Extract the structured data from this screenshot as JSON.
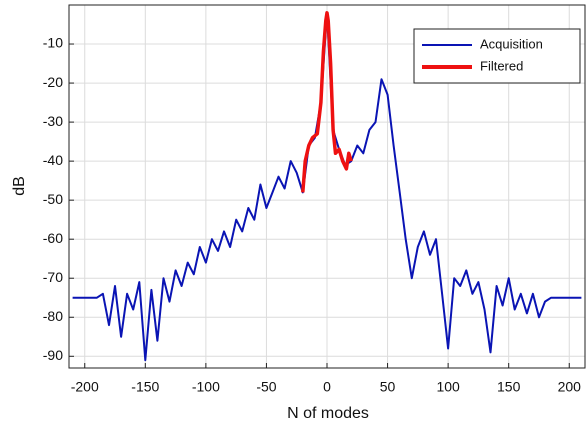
{
  "chart_data": {
    "type": "line",
    "xlabel": "N of modes",
    "ylabel": "dB",
    "xlim": [
      -213,
      213
    ],
    "ylim": [
      -93,
      0
    ],
    "xticks": [
      -200,
      -150,
      -100,
      -50,
      0,
      50,
      100,
      150,
      200
    ],
    "yticks": [
      -90,
      -80,
      -70,
      -60,
      -50,
      -40,
      -30,
      -20,
      -10
    ],
    "grid": true,
    "legend": "upper right",
    "series": [
      {
        "name": "Acquisition",
        "color": "#0a14b4",
        "x": [
          -210,
          -205,
          -200,
          -195,
          -190,
          -185,
          -180,
          -175,
          -170,
          -165,
          -160,
          -155,
          -150,
          -145,
          -140,
          -135,
          -130,
          -125,
          -120,
          -115,
          -110,
          -105,
          -100,
          -95,
          -90,
          -85,
          -80,
          -75,
          -70,
          -65,
          -60,
          -55,
          -50,
          -45,
          -40,
          -35,
          -30,
          -25,
          -20,
          -15,
          -10,
          -5,
          0,
          5,
          10,
          15,
          20,
          25,
          30,
          35,
          40,
          45,
          50,
          55,
          60,
          65,
          70,
          75,
          80,
          85,
          90,
          95,
          100,
          105,
          110,
          115,
          120,
          125,
          130,
          135,
          140,
          145,
          150,
          155,
          160,
          165,
          170,
          175,
          180,
          185,
          190,
          195,
          200,
          205,
          210
        ],
        "values": [
          -75,
          -75,
          -75,
          -75,
          -75,
          -74,
          -82,
          -72,
          -85,
          -74,
          -78,
          -71,
          -91,
          -73,
          -86,
          -70,
          -76,
          -68,
          -72,
          -66,
          -69,
          -62,
          -66,
          -60,
          -63,
          -58,
          -62,
          -55,
          -58,
          -52,
          -55,
          -46,
          -52,
          -48,
          -44,
          -47,
          -40,
          -43,
          -48,
          -36,
          -34,
          -25,
          -2,
          -32,
          -37,
          -41,
          -40,
          -36,
          -38,
          -32,
          -30,
          -19,
          -23,
          -36,
          -48,
          -60,
          -70,
          -62,
          -58,
          -64,
          -60,
          -74,
          -88,
          -70,
          -72,
          -68,
          -74,
          -71,
          -78,
          -89,
          -72,
          -77,
          -70,
          -78,
          -74,
          -79,
          -74,
          -80,
          -76,
          -75,
          -75,
          -75,
          -75,
          -75,
          -75
        ]
      },
      {
        "name": "Filtered",
        "color": "#ee1111",
        "x": [
          -20,
          -18,
          -15,
          -12,
          -8,
          -5,
          -3,
          -1,
          0,
          1,
          3,
          5,
          7,
          10,
          13,
          16,
          18,
          20
        ],
        "values": [
          -48,
          -40,
          -36,
          -34,
          -33,
          -25,
          -12,
          -4,
          -2,
          -4,
          -15,
          -32,
          -38,
          -37,
          -40,
          -42,
          -38,
          -40
        ]
      }
    ]
  }
}
